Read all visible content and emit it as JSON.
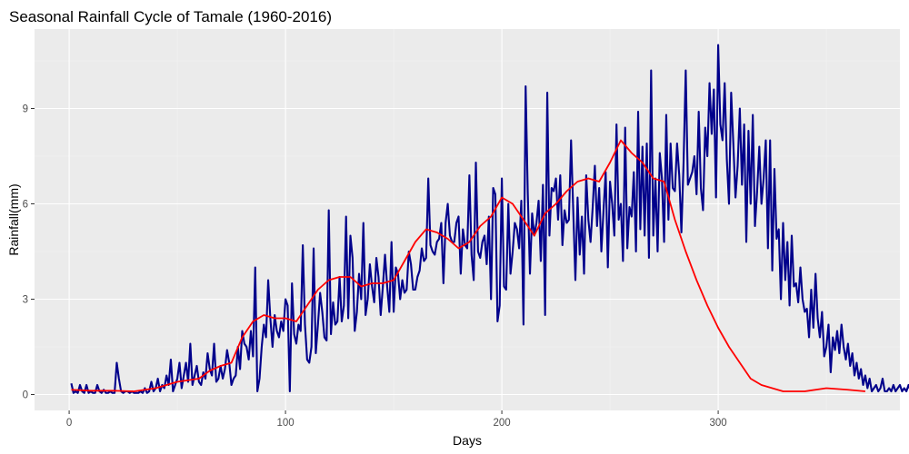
{
  "chart_data": {
    "type": "line",
    "title": "Seasonal Rainfall Cycle of Tamale (1960-2016)",
    "xlabel": "Days",
    "ylabel": "Rainfall(mm)",
    "xlim": [
      -16,
      384
    ],
    "ylim": [
      -0.5,
      11.5
    ],
    "xticks": [
      0,
      100,
      200,
      300
    ],
    "yticks": [
      0,
      3,
      6,
      9
    ],
    "grid": true,
    "legend": "none",
    "colors": {
      "panel_background": "#ebebeb",
      "daily_series": "#00008b",
      "smoothed_series": "#ff0000"
    },
    "series": [
      {
        "key": "daily",
        "x_start": 1,
        "values": [
          0.35,
          0.05,
          0.1,
          0.05,
          0.3,
          0.1,
          0.05,
          0.3,
          0.05,
          0.1,
          0.05,
          0.05,
          0.3,
          0.1,
          0.05,
          0.15,
          0.05,
          0.05,
          0.1,
          0.05,
          0.05,
          1.0,
          0.5,
          0.1,
          0.05,
          0.1,
          0.1,
          0.05,
          0.1,
          0.05,
          0.05,
          0.05,
          0.1,
          0.05,
          0.2,
          0.05,
          0.1,
          0.4,
          0.1,
          0.2,
          0.5,
          0.1,
          0.3,
          0.2,
          0.6,
          0.3,
          1.1,
          0.1,
          0.3,
          0.5,
          1.0,
          0.2,
          0.6,
          1.0,
          0.4,
          1.6,
          0.3,
          0.6,
          0.9,
          0.4,
          0.3,
          0.7,
          0.5,
          1.3,
          0.8,
          0.6,
          1.6,
          0.4,
          0.5,
          0.9,
          0.5,
          0.8,
          1.4,
          1.0,
          0.3,
          0.5,
          0.6,
          1.5,
          0.8,
          2.0,
          1.6,
          1.5,
          1.1,
          2.0,
          1.2,
          4.0,
          0.1,
          0.5,
          1.5,
          2.2,
          1.8,
          3.6,
          2.4,
          1.5,
          2.5,
          2.0,
          1.8,
          2.3,
          2.0,
          3.0,
          2.8,
          0.1,
          3.5,
          1.9,
          1.6,
          2.2,
          2.0,
          4.7,
          2.2,
          1.1,
          1.0,
          1.5,
          4.6,
          1.3,
          2.2,
          3.2,
          2.6,
          1.8,
          1.7,
          5.8,
          1.9,
          2.9,
          2.2,
          2.3,
          3.7,
          2.3,
          2.8,
          5.6,
          2.4,
          5.0,
          4.3,
          2.0,
          2.6,
          3.8,
          3.0,
          5.4,
          2.5,
          3.0,
          4.1,
          3.4,
          2.9,
          4.3,
          3.7,
          2.5,
          3.4,
          4.4,
          3.4,
          2.6,
          4.8,
          2.6,
          4.0,
          3.8,
          3.0,
          3.6,
          3.2,
          3.3,
          4.5,
          4.1,
          3.3,
          3.3,
          3.7,
          3.9,
          4.6,
          4.2,
          4.3,
          6.8,
          4.7,
          4.5,
          4.4,
          4.8,
          4.9,
          5.4,
          3.5,
          5.4,
          6.0,
          5.0,
          4.8,
          4.8,
          5.4,
          5.6,
          3.8,
          5.2,
          4.7,
          4.6,
          6.9,
          4.4,
          3.6,
          7.3,
          4.5,
          4.3,
          4.8,
          5.0,
          4.1,
          5.6,
          3.0,
          6.5,
          6.3,
          2.3,
          2.8,
          6.8,
          3.4,
          3.3,
          6.0,
          3.8,
          4.5,
          5.4,
          5.2,
          4.6,
          6.1,
          2.2,
          9.7,
          6.3,
          3.8,
          5.7,
          5.0,
          5.4,
          6.1,
          4.2,
          6.6,
          2.5,
          9.5,
          5.0,
          6.5,
          6.4,
          6.8,
          5.5,
          6.9,
          4.7,
          5.8,
          5.4,
          5.5,
          8.0,
          5.8,
          3.6,
          6.2,
          4.4,
          5.6,
          3.8,
          6.9,
          5.5,
          4.8,
          5.9,
          7.2,
          5.3,
          6.5,
          4.5,
          5.8,
          7.0,
          4.0,
          6.7,
          6.0,
          5.0,
          8.5,
          5.5,
          6.0,
          4.2,
          8.4,
          4.6,
          5.9,
          5.6,
          7.0,
          4.5,
          8.9,
          5.2,
          7.8,
          5.0,
          7.9,
          4.3,
          10.2,
          5.0,
          6.8,
          4.5,
          7.6,
          6.8,
          4.8,
          8.8,
          5.5,
          7.9,
          6.5,
          6.4,
          7.9,
          6.9,
          5.1,
          7.3,
          10.2,
          6.6,
          6.8,
          7.0,
          7.5,
          6.3,
          8.9,
          6.5,
          5.8,
          8.4,
          7.5,
          9.8,
          8.2,
          9.6,
          6.2,
          11.0,
          8.5,
          8.0,
          9.8,
          7.4,
          6.0,
          9.5,
          7.9,
          6.2,
          7.2,
          9.0,
          6.6,
          8.5,
          4.8,
          8.3,
          6.0,
          8.8,
          5.3,
          6.4,
          7.8,
          6.0,
          6.8,
          8.0,
          4.6,
          8.0,
          3.9,
          7.1,
          4.9,
          5.2,
          3.0,
          5.4,
          3.6,
          4.8,
          2.8,
          5.0,
          3.4,
          3.5,
          2.9,
          4.0,
          3.0,
          2.6,
          2.7,
          1.8,
          3.3,
          2.1,
          3.8,
          2.4,
          1.8,
          2.6,
          1.2,
          1.5,
          2.2,
          0.7,
          1.8,
          1.4,
          2.0,
          1.3,
          2.2,
          1.5,
          1.1,
          1.6,
          0.9,
          1.3,
          0.6,
          1.0,
          0.5,
          0.8,
          0.3,
          0.6,
          0.2,
          0.5,
          0.1,
          0.2,
          0.3,
          0.1,
          0.2,
          0.5,
          0.1,
          0.1,
          0.2,
          0.1,
          0.3,
          0.1,
          0.2,
          0.3,
          0.1,
          0.2,
          0.1,
          0.3,
          0.1,
          0.1,
          0.2,
          0.3,
          0.1,
          0.2,
          0.2,
          0.1,
          0.3,
          0.1,
          0.8,
          0.6,
          0.1,
          0.3,
          0.1,
          0.2,
          0.4,
          0.1,
          0.2,
          0.1,
          0.1,
          0.3,
          0.0,
          0.1,
          0.15,
          0.05
        ]
      },
      {
        "key": "smoothed",
        "x": [
          1,
          10,
          20,
          30,
          40,
          50,
          60,
          65,
          70,
          75,
          80,
          85,
          90,
          95,
          100,
          105,
          110,
          115,
          120,
          125,
          130,
          135,
          140,
          145,
          150,
          155,
          160,
          165,
          170,
          175,
          180,
          185,
          190,
          195,
          200,
          205,
          210,
          215,
          220,
          225,
          230,
          235,
          240,
          245,
          250,
          255,
          260,
          265,
          270,
          275,
          280,
          285,
          290,
          295,
          300,
          305,
          310,
          315,
          320,
          330,
          340,
          350,
          360,
          368
        ],
        "values": [
          0.15,
          0.12,
          0.12,
          0.1,
          0.2,
          0.4,
          0.5,
          0.75,
          0.9,
          1.0,
          1.8,
          2.3,
          2.5,
          2.4,
          2.4,
          2.3,
          2.8,
          3.3,
          3.6,
          3.7,
          3.7,
          3.4,
          3.5,
          3.5,
          3.6,
          4.2,
          4.8,
          5.2,
          5.1,
          4.9,
          4.6,
          4.8,
          5.3,
          5.6,
          6.2,
          6.0,
          5.5,
          5.0,
          5.7,
          6.0,
          6.4,
          6.7,
          6.8,
          6.7,
          7.3,
          8.0,
          7.6,
          7.3,
          6.8,
          6.7,
          5.5,
          4.5,
          3.6,
          2.8,
          2.1,
          1.5,
          1.0,
          0.5,
          0.3,
          0.1,
          0.1,
          0.2,
          0.15,
          0.1
        ]
      }
    ]
  }
}
